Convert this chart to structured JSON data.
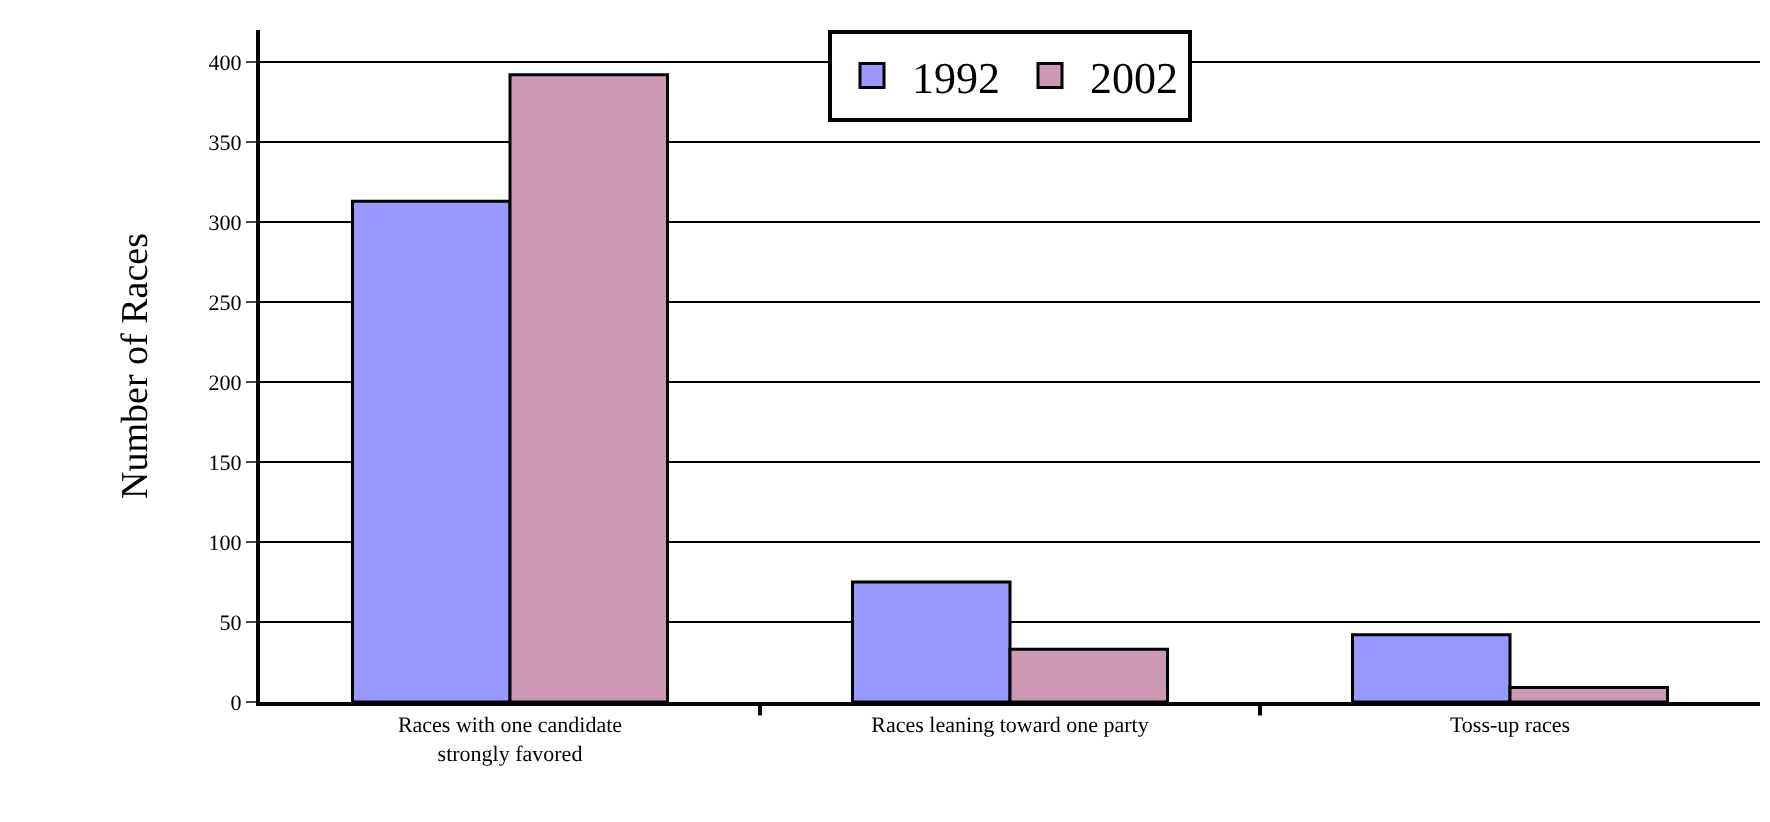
{
  "chart_data": {
    "type": "bar",
    "ylabel": "Number of Races",
    "categories": [
      "Races with one candidate\nstrongly favored",
      "Races leaning toward one party",
      "Toss-up races"
    ],
    "series": [
      {
        "name": "1992",
        "color": "#9999ff",
        "values": [
          313,
          75,
          42
        ]
      },
      {
        "name": "2002",
        "color": "#cc99b4",
        "values": [
          392,
          33,
          9
        ]
      }
    ],
    "ylim": [
      0,
      420
    ],
    "yticks": [
      0,
      50,
      100,
      150,
      200,
      250,
      300,
      350,
      400
    ],
    "grid": "y",
    "legend": "top"
  }
}
